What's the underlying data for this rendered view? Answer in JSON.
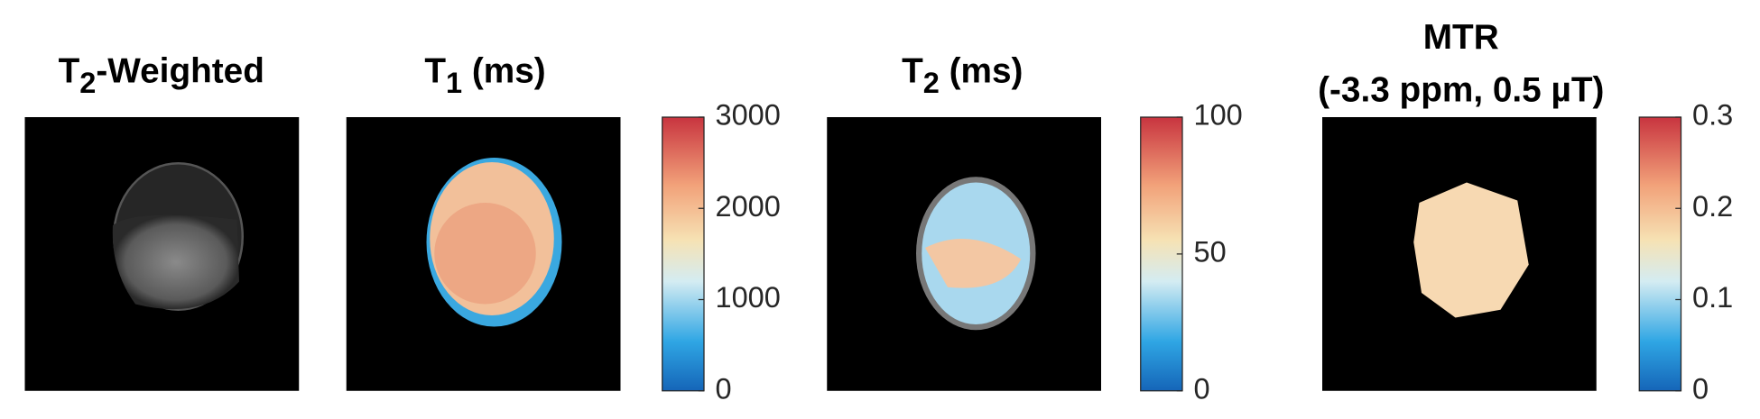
{
  "panels": [
    {
      "title": [
        [
          {
            "text": "T"
          },
          {
            "text": "2",
            "sub": true
          },
          {
            "text": "-Weighted"
          }
        ]
      ]
    },
    {
      "title": [
        [
          {
            "text": "T"
          },
          {
            "text": "1",
            "sub": true
          },
          {
            "text": " (ms)"
          }
        ]
      ],
      "colorbar": {
        "lim": [
          0,
          3000
        ],
        "ticks": [
          0,
          1000,
          2000,
          3000
        ]
      }
    },
    {
      "title": [
        [
          {
            "text": "T"
          },
          {
            "text": "2",
            "sub": true
          },
          {
            "text": " (ms)"
          }
        ]
      ],
      "colorbar": {
        "lim": [
          0,
          100
        ],
        "ticks": [
          0,
          50,
          100
        ]
      }
    },
    {
      "title": [
        [
          {
            "text": "MTR"
          }
        ],
        [
          {
            "text": "(-3.3 ppm, 0.5 µT)"
          }
        ]
      ],
      "colorbar": {
        "lim": [
          0,
          0.3
        ],
        "ticks": [
          0,
          0.1,
          0.2,
          0.3
        ]
      }
    }
  ]
}
